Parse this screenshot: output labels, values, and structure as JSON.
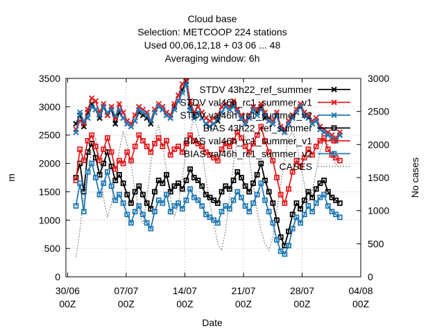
{
  "chart_data": {
    "type": "line",
    "title_lines": [
      "Cloud base",
      "Selection: METCOOP    224 stations",
      "Used  00,06,12,18  + 03 06 ... 48",
      "Averaging window:  6h"
    ],
    "xlabel": "Date",
    "ylabel": "m",
    "y2label": "No cases",
    "x_ticks": [
      {
        "day": 0,
        "line1": "30/06",
        "line2": "00Z"
      },
      {
        "day": 7,
        "line1": "07/07",
        "line2": "00Z"
      },
      {
        "day": 14,
        "line1": "14/07",
        "line2": "00Z"
      },
      {
        "day": 21,
        "line1": "21/07",
        "line2": "00Z"
      },
      {
        "day": 28,
        "line1": "28/07",
        "line2": "00Z"
      },
      {
        "day": 35,
        "line1": "04/08",
        "line2": "00Z"
      }
    ],
    "ylim": [
      0,
      3500
    ],
    "y_ticks": [
      0,
      500,
      1000,
      1500,
      2000,
      2500,
      3000,
      3500
    ],
    "y2lim": [
      0,
      3000
    ],
    "y2_ticks": [
      0,
      500,
      1000,
      1500,
      2000,
      2500,
      3000
    ],
    "grid": true,
    "legend_position": "top-right",
    "legend": [
      "STDV 43h22_ref_summer",
      "STDV val46h_rc1_summer_v1",
      "STDV val46h_rc1_summer_v2",
      "BIAS 43h22_ref_summer",
      "BIAS val46h_rc1_summer_v1",
      "BIAS val46h_rc1_summer_v2",
      "CASES"
    ],
    "series": [
      {
        "name": "STDV 43h22_ref_summer",
        "color": "#000000",
        "marker": "x",
        "axis": "y1",
        "values": [
          2700,
          2850,
          2650,
          2900,
          3050,
          2950,
          2800,
          3000,
          2850,
          2950,
          2700,
          2900,
          2800,
          2700,
          2650,
          2750,
          2900,
          2850,
          2800,
          2700,
          2900,
          3000,
          2950,
          2850,
          2800,
          3000,
          3100,
          3300,
          3450,
          3000,
          2850,
          2900,
          2800,
          2700,
          2650,
          2700,
          2750,
          2900,
          3000,
          2950,
          3050,
          2900,
          2800,
          2700,
          2800,
          2950,
          2900,
          3000,
          2800,
          2750,
          2700,
          2850,
          2600,
          2550,
          2700,
          2800,
          2900,
          3000,
          2850,
          2800,
          2700,
          2750,
          2600,
          2550,
          2500,
          2450,
          2400,
          2500
        ]
      },
      {
        "name": "STDV val46h_rc1_summer_v1",
        "color": "#e41a1c",
        "marker": "x",
        "axis": "y1",
        "values": [
          2600,
          2750,
          2700,
          2950,
          3150,
          3100,
          2900,
          3050,
          2850,
          3000,
          2800,
          3050,
          2900,
          2750,
          2700,
          2850,
          3000,
          2950,
          2900,
          2750,
          2950,
          3050,
          3000,
          2900,
          2850,
          3050,
          3200,
          3400,
          3500,
          3100,
          2900,
          3000,
          2900,
          2800,
          2750,
          2800,
          2850,
          3000,
          3050,
          3000,
          3100,
          2950,
          2850,
          2750,
          2850,
          3000,
          2950,
          3050,
          2900,
          2800,
          2750,
          2900,
          2650,
          2600,
          2750,
          2850,
          2950,
          3050,
          2900,
          2850,
          2750,
          2800,
          2650,
          2600,
          2550,
          2500,
          2450,
          2550
        ]
      },
      {
        "name": "STDV val46h_rc1_summer_v2",
        "color": "#1f78b4",
        "marker": "x",
        "axis": "y1",
        "values": [
          2550,
          2900,
          2750,
          2800,
          3000,
          2950,
          2850,
          3000,
          2900,
          2950,
          2850,
          2950,
          2800,
          2700,
          2650,
          2750,
          2950,
          2900,
          2850,
          2750,
          2900,
          3000,
          2950,
          2850,
          2800,
          2950,
          3100,
          3250,
          3400,
          2950,
          2800,
          2900,
          2800,
          2700,
          2650,
          2700,
          2800,
          2900,
          3000,
          2950,
          3000,
          2900,
          2800,
          2700,
          2800,
          2950,
          2850,
          2950,
          2850,
          2750,
          2700,
          2850,
          2600,
          2550,
          2700,
          2800,
          2900,
          3000,
          2850,
          2800,
          2700,
          2750,
          2600,
          2550,
          2500,
          2450,
          2400,
          2500
        ]
      },
      {
        "name": "BIAS 43h22_ref_summer",
        "color": "#000000",
        "marker": "square",
        "axis": "y1",
        "values": [
          1750,
          2000,
          1500,
          2200,
          2350,
          2100,
          1800,
          2000,
          2200,
          1950,
          1700,
          1800,
          1650,
          1450,
          1300,
          1500,
          1600,
          1450,
          1300,
          1200,
          1500,
          1700,
          1650,
          1800,
          1500,
          1600,
          1650,
          1550,
          1700,
          1900,
          1750,
          1700,
          1600,
          1450,
          1400,
          1350,
          1300,
          1500,
          1600,
          1550,
          1700,
          1850,
          1750,
          1600,
          1500,
          1650,
          1800,
          2000,
          1700,
          1500,
          1300,
          1000,
          700,
          550,
          800,
          1100,
          1300,
          1200,
          1350,
          1500,
          1400,
          1550,
          1650,
          1700,
          1500,
          1400,
          1350,
          1300
        ]
      },
      {
        "name": "BIAS val46h_rc1_summer_v1",
        "color": "#e41a1c",
        "marker": "square",
        "axis": "y1",
        "values": [
          1700,
          2250,
          2050,
          2400,
          2500,
          2300,
          2050,
          2250,
          2450,
          2200,
          1900,
          2050,
          2000,
          2200,
          2050,
          2300,
          2500,
          2400,
          2300,
          2200,
          2350,
          2450,
          2300,
          2400,
          2150,
          2250,
          2300,
          2200,
          2350,
          2500,
          2400,
          2350,
          2300,
          2200,
          2150,
          2100,
          2050,
          2250,
          2350,
          2300,
          2400,
          2550,
          2450,
          2300,
          2200,
          2350,
          2500,
          2650,
          2400,
          2200,
          2050,
          1750,
          1450,
          1300,
          1550,
          1850,
          2050,
          1950,
          2100,
          2250,
          2150,
          2300,
          2400,
          2450,
          2250,
          2150,
          2100,
          2050
        ]
      },
      {
        "name": "BIAS val46h_rc1_summer_v2",
        "color": "#1f78b4",
        "marker": "square",
        "axis": "y1",
        "values": [
          1250,
          1650,
          1150,
          1850,
          2000,
          1750,
          1450,
          1650,
          1850,
          1600,
          1350,
          1450,
          1300,
          1100,
          950,
          1150,
          1250,
          1100,
          950,
          850,
          1150,
          1350,
          1300,
          1450,
          1150,
          1250,
          1300,
          1200,
          1350,
          1550,
          1400,
          1350,
          1250,
          1100,
          1050,
          1000,
          950,
          1150,
          1250,
          1200,
          1350,
          1500,
          1400,
          1250,
          1150,
          1300,
          1450,
          1650,
          1350,
          1150,
          950,
          650,
          450,
          400,
          550,
          850,
          1050,
          950,
          1100,
          1250,
          1150,
          1300,
          1400,
          1450,
          1250,
          1150,
          1100,
          1050
        ]
      },
      {
        "name": "CASES",
        "color": "#888888",
        "marker": "none",
        "axis": "y2",
        "values": [
          300,
          700,
          1200,
          1600,
          1900,
          2100,
          1800,
          1200,
          900,
          1100,
          1500,
          1900,
          2200,
          2000,
          1700,
          1300,
          1000,
          800,
          1200,
          1700,
          2100,
          2300,
          2000,
          1600,
          1200,
          900,
          1100,
          1500,
          1900,
          2200,
          2400,
          2200,
          1900,
          1500,
          1100,
          800,
          500,
          400,
          700,
          1200,
          1700,
          2100,
          2300,
          2100,
          1800,
          1400,
          1000,
          700,
          500,
          400,
          600,
          1000,
          1400,
          1800,
          2100,
          2200,
          2000,
          1700,
          1400,
          1100,
          1300,
          1600,
          1900,
          2100,
          2000,
          1800,
          1700,
          1650
        ]
      }
    ]
  }
}
